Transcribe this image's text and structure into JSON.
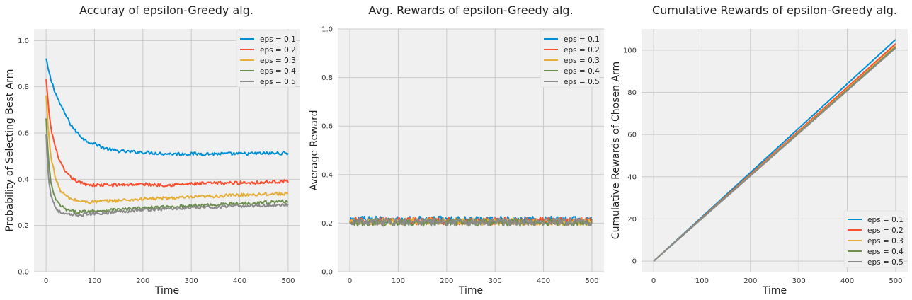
{
  "chart_data": [
    {
      "type": "line",
      "title": "Accuray of epsilon-Greedy alg.",
      "xlabel": "Time",
      "ylabel": "Probability of Selecting Best Arm",
      "xlim": [
        -25,
        525
      ],
      "ylim": [
        0.0,
        1.05
      ],
      "xticks": [
        0,
        100,
        200,
        300,
        400,
        500
      ],
      "yticks": [
        0.0,
        0.2,
        0.4,
        0.6,
        0.8,
        1.0
      ],
      "xtick_labels": [
        "0",
        "100",
        "200",
        "300",
        "400",
        "500"
      ],
      "ytick_labels": [
        "0.0",
        "0.2",
        "0.4",
        "0.6",
        "0.8",
        "1.0"
      ],
      "grid": true,
      "legend_position": "top-right",
      "series": [
        {
          "name": "eps = 0.1",
          "color": "#008fd5",
          "x": [
            0,
            5,
            10,
            20,
            30,
            40,
            50,
            60,
            70,
            80,
            90,
            100,
            120,
            140,
            160,
            180,
            200,
            250,
            300,
            350,
            400,
            450,
            500
          ],
          "y": [
            0.92,
            0.87,
            0.83,
            0.77,
            0.72,
            0.68,
            0.64,
            0.61,
            0.59,
            0.57,
            0.56,
            0.555,
            0.535,
            0.525,
            0.52,
            0.518,
            0.517,
            0.51,
            0.51,
            0.51,
            0.51,
            0.512,
            0.513
          ]
        },
        {
          "name": "eps = 0.2",
          "color": "#fc4f30",
          "x": [
            0,
            5,
            10,
            20,
            30,
            40,
            50,
            60,
            70,
            80,
            90,
            100,
            120,
            140,
            160,
            180,
            200,
            250,
            300,
            350,
            400,
            450,
            500
          ],
          "y": [
            0.83,
            0.71,
            0.62,
            0.53,
            0.47,
            0.43,
            0.41,
            0.395,
            0.385,
            0.38,
            0.377,
            0.375,
            0.375,
            0.375,
            0.377,
            0.378,
            0.378,
            0.375,
            0.38,
            0.383,
            0.385,
            0.387,
            0.392
          ]
        },
        {
          "name": "eps = 0.3",
          "color": "#e5ae38",
          "x": [
            0,
            5,
            10,
            20,
            30,
            40,
            50,
            60,
            70,
            80,
            90,
            100,
            120,
            140,
            160,
            180,
            200,
            250,
            300,
            350,
            400,
            450,
            500
          ],
          "y": [
            0.76,
            0.6,
            0.5,
            0.4,
            0.35,
            0.33,
            0.315,
            0.31,
            0.305,
            0.302,
            0.302,
            0.303,
            0.305,
            0.307,
            0.31,
            0.312,
            0.315,
            0.318,
            0.322,
            0.327,
            0.332,
            0.336,
            0.338
          ]
        },
        {
          "name": "eps = 0.4",
          "color": "#6d904f",
          "x": [
            0,
            5,
            10,
            20,
            30,
            40,
            50,
            60,
            70,
            80,
            90,
            100,
            120,
            140,
            160,
            180,
            200,
            250,
            300,
            350,
            400,
            450,
            500
          ],
          "y": [
            0.66,
            0.48,
            0.38,
            0.31,
            0.285,
            0.27,
            0.262,
            0.258,
            0.258,
            0.26,
            0.262,
            0.263,
            0.265,
            0.268,
            0.27,
            0.272,
            0.275,
            0.28,
            0.285,
            0.29,
            0.295,
            0.3,
            0.305
          ]
        },
        {
          "name": "eps = 0.5",
          "color": "#8b8b8b",
          "x": [
            0,
            5,
            10,
            20,
            30,
            40,
            50,
            60,
            70,
            80,
            90,
            100,
            120,
            140,
            160,
            180,
            200,
            250,
            300,
            350,
            400,
            450,
            500
          ],
          "y": [
            0.59,
            0.41,
            0.33,
            0.275,
            0.255,
            0.248,
            0.245,
            0.245,
            0.246,
            0.248,
            0.25,
            0.252,
            0.255,
            0.258,
            0.262,
            0.265,
            0.268,
            0.272,
            0.276,
            0.28,
            0.284,
            0.287,
            0.29
          ]
        }
      ]
    },
    {
      "type": "line",
      "title": "Avg. Rewards of epsilon-Greedy alg.",
      "xlabel": "Time",
      "ylabel": "Average Reward",
      "xlim": [
        -25,
        525
      ],
      "ylim": [
        0.0,
        1.0
      ],
      "xticks": [
        0,
        100,
        200,
        300,
        400,
        500
      ],
      "yticks": [
        0.0,
        0.2,
        0.4,
        0.6,
        0.8,
        1.0
      ],
      "xtick_labels": [
        "0",
        "100",
        "200",
        "300",
        "400",
        "500"
      ],
      "ytick_labels": [
        "0.0",
        "0.2",
        "0.4",
        "0.6",
        "0.8",
        "1.0"
      ],
      "grid": true,
      "legend_position": "top-right",
      "series": [
        {
          "name": "eps = 0.1",
          "color": "#008fd5",
          "x": [
            0,
            500
          ],
          "y": [
            0.213,
            0.213
          ]
        },
        {
          "name": "eps = 0.2",
          "color": "#fc4f30",
          "x": [
            0,
            500
          ],
          "y": [
            0.209,
            0.209
          ]
        },
        {
          "name": "eps = 0.3",
          "color": "#e5ae38",
          "x": [
            0,
            500
          ],
          "y": [
            0.206,
            0.206
          ]
        },
        {
          "name": "eps = 0.4",
          "color": "#6d904f",
          "x": [
            0,
            500
          ],
          "y": [
            0.203,
            0.203
          ]
        },
        {
          "name": "eps = 0.5",
          "color": "#8b8b8b",
          "x": [
            0,
            500
          ],
          "y": [
            0.205,
            0.205
          ]
        }
      ]
    },
    {
      "type": "line",
      "title": "Cumulative Rewards of epsilon-Greedy alg.",
      "xlabel": "Time",
      "ylabel": "Cumulative Rewards of Chosen Arm",
      "xlim": [
        -25,
        525
      ],
      "ylim": [
        -5,
        110
      ],
      "xticks": [
        0,
        100,
        200,
        300,
        400,
        500
      ],
      "yticks": [
        0,
        20,
        40,
        60,
        80,
        100
      ],
      "xtick_labels": [
        "0",
        "100",
        "200",
        "300",
        "400",
        "500"
      ],
      "ytick_labels": [
        "0",
        "20",
        "40",
        "60",
        "80",
        "100"
      ],
      "grid": true,
      "legend_position": "bottom-right",
      "series": [
        {
          "name": "eps = 0.1",
          "color": "#008fd5",
          "x": [
            0,
            500
          ],
          "y": [
            0,
            105
          ]
        },
        {
          "name": "eps = 0.2",
          "color": "#fc4f30",
          "x": [
            0,
            500
          ],
          "y": [
            0,
            103
          ]
        },
        {
          "name": "eps = 0.3",
          "color": "#e5ae38",
          "x": [
            0,
            500
          ],
          "y": [
            0,
            102
          ]
        },
        {
          "name": "eps = 0.4",
          "color": "#6d904f",
          "x": [
            0,
            500
          ],
          "y": [
            0,
            101.5
          ]
        },
        {
          "name": "eps = 0.5",
          "color": "#8b8b8b",
          "x": [
            0,
            500
          ],
          "y": [
            0,
            101
          ]
        }
      ]
    }
  ]
}
